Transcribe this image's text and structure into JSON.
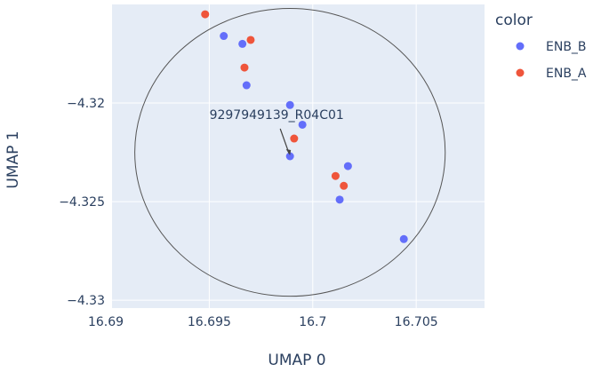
{
  "chart_data": {
    "type": "scatter",
    "xlabel": "UMAP 0",
    "ylabel": "UMAP 1",
    "xlim": [
      16.6903,
      16.7083
    ],
    "ylim": [
      -4.3304,
      -4.315
    ],
    "x_ticks": [
      16.69,
      16.695,
      16.7,
      16.705
    ],
    "x_tick_labels": [
      "16.69",
      "16.695",
      "16.7",
      "16.705"
    ],
    "y_ticks": [
      -4.32,
      -4.325,
      -4.33
    ],
    "y_tick_labels": [
      "−4.32",
      "−4.325",
      "−4.33"
    ],
    "grid": true,
    "legend": {
      "title": "color",
      "placement": "right",
      "entries": [
        {
          "label": "ENB_B",
          "color": "#636efa"
        },
        {
          "label": "ENB_A",
          "color": "#ef553b"
        }
      ]
    },
    "series": [
      {
        "name": "ENB_B",
        "color": "#636efa",
        "points": [
          {
            "x": 16.6957,
            "y": -4.3166
          },
          {
            "x": 16.6966,
            "y": -4.317
          },
          {
            "x": 16.6968,
            "y": -4.3191
          },
          {
            "x": 16.6989,
            "y": -4.3201
          },
          {
            "x": 16.6995,
            "y": -4.3211
          },
          {
            "x": 16.6989,
            "y": -4.3227
          },
          {
            "x": 16.7017,
            "y": -4.3232
          },
          {
            "x": 16.7013,
            "y": -4.3249
          },
          {
            "x": 16.7044,
            "y": -4.3269
          }
        ]
      },
      {
        "name": "ENB_A",
        "color": "#ef553b",
        "points": [
          {
            "x": 16.6948,
            "y": -4.3155
          },
          {
            "x": 16.697,
            "y": -4.3168
          },
          {
            "x": 16.6967,
            "y": -4.3182
          },
          {
            "x": 16.6991,
            "y": -4.3218
          },
          {
            "x": 16.7011,
            "y": -4.3237
          },
          {
            "x": 16.7015,
            "y": -4.3242
          }
        ]
      }
    ],
    "annotations": [
      {
        "text": "9297949139_R04C01",
        "x": 16.6989,
        "y": -4.3227,
        "arrow": true
      }
    ],
    "shapes": [
      {
        "type": "circle",
        "x0": 16.6914,
        "x1": 16.7064,
        "y0": -4.3298,
        "y1": -4.3152,
        "line_color": "#555555"
      }
    ]
  },
  "colors": {
    "plot_bg": "#e5ecf6",
    "grid": "#ffffff",
    "text": "#2a3f5f"
  }
}
